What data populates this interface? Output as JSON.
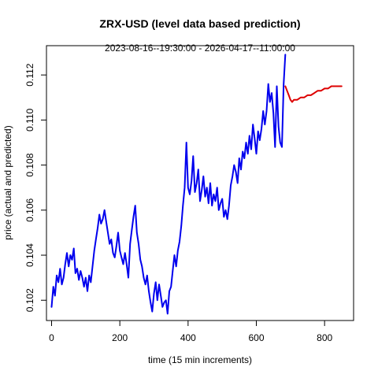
{
  "chart_data": {
    "type": "line",
    "title": "ZRX-USD (level data based prediction)",
    "subtitle": "2023-08-16--19:30:00  -  2026-04-17--11:00:00",
    "xlabel": "time (15 min increments)",
    "ylabel": "price (actual and predicted)",
    "xlim": [
      -15,
      885
    ],
    "ylim": [
      0.1011,
      0.1133
    ],
    "xticks": [
      0,
      200,
      400,
      600,
      800
    ],
    "yticks": [
      0.102,
      0.104,
      0.106,
      0.108,
      0.11,
      0.112
    ],
    "ytick_labels": [
      "0.102",
      "0.104",
      "0.106",
      "0.108",
      "0.110",
      "0.112"
    ],
    "grid": false,
    "legend": "none",
    "series": [
      {
        "color": "#0000ee",
        "x": [
          0,
          5,
          10,
          15,
          20,
          25,
          30,
          35,
          40,
          45,
          50,
          55,
          60,
          65,
          70,
          75,
          80,
          85,
          90,
          95,
          100,
          105,
          110,
          115,
          120,
          125,
          130,
          135,
          140,
          145,
          150,
          155,
          160,
          165,
          170,
          175,
          180,
          185,
          190,
          195,
          200,
          205,
          210,
          215,
          220,
          225,
          230,
          235,
          240,
          245,
          250,
          255,
          260,
          265,
          270,
          275,
          280,
          285,
          290,
          295,
          300,
          305,
          310,
          315,
          320,
          325,
          330,
          335,
          340,
          345,
          350,
          355,
          360,
          365,
          370,
          375,
          380,
          385,
          390,
          395,
          400,
          405,
          410,
          415,
          420,
          425,
          430,
          435,
          440,
          445,
          450,
          455,
          460,
          465,
          470,
          475,
          480,
          485,
          490,
          495,
          500,
          505,
          510,
          515,
          520,
          525,
          530,
          535,
          540,
          545,
          550,
          555,
          560,
          565,
          570,
          575,
          580,
          585,
          590,
          595,
          600,
          605,
          610,
          615,
          620,
          625,
          630,
          635,
          640,
          645,
          650,
          655,
          660,
          665,
          670,
          675,
          680,
          685
        ],
        "y": [
          0.1017,
          0.1026,
          0.1022,
          0.1031,
          0.1028,
          0.1034,
          0.1027,
          0.103,
          0.1036,
          0.1041,
          0.1035,
          0.104,
          0.1038,
          0.1043,
          0.1032,
          0.1034,
          0.1029,
          0.1033,
          0.103,
          0.1026,
          0.103,
          0.1024,
          0.1031,
          0.1028,
          0.1035,
          0.1042,
          0.1047,
          0.1052,
          0.1058,
          0.1054,
          0.1056,
          0.106,
          0.1055,
          0.105,
          0.1045,
          0.1047,
          0.1041,
          0.1039,
          0.1044,
          0.105,
          0.1042,
          0.1039,
          0.1036,
          0.1041,
          0.1036,
          0.103,
          0.1045,
          0.1051,
          0.1057,
          0.1062,
          0.105,
          0.1045,
          0.1038,
          0.1035,
          0.103,
          0.1027,
          0.1031,
          0.1024,
          0.1019,
          0.1015,
          0.1023,
          0.1028,
          0.102,
          0.1027,
          0.1022,
          0.1017,
          0.1019,
          0.102,
          0.1014,
          0.1024,
          0.1026,
          0.1033,
          0.104,
          0.1035,
          0.1042,
          0.1046,
          0.1053,
          0.1062,
          0.107,
          0.109,
          0.107,
          0.1067,
          0.1073,
          0.1084,
          0.1068,
          0.1072,
          0.1078,
          0.1064,
          0.1069,
          0.1075,
          0.1066,
          0.107,
          0.1063,
          0.1072,
          0.1062,
          0.1067,
          0.1064,
          0.107,
          0.106,
          0.1063,
          0.1065,
          0.1057,
          0.106,
          0.1056,
          0.1062,
          0.1071,
          0.1075,
          0.108,
          0.1077,
          0.1072,
          0.1083,
          0.1078,
          0.1086,
          0.1083,
          0.109,
          0.1085,
          0.1093,
          0.1087,
          0.1098,
          0.1092,
          0.1085,
          0.1095,
          0.1091,
          0.1096,
          0.1104,
          0.1098,
          0.1104,
          0.1116,
          0.1108,
          0.1112,
          0.1103,
          0.1088,
          0.1115,
          0.1097,
          0.109,
          0.1088,
          0.1116,
          0.1129
        ]
      },
      {
        "color": "#dd0000",
        "x": [
          685,
          690,
          695,
          700,
          705,
          710,
          715,
          720,
          730,
          740,
          750,
          760,
          770,
          780,
          790,
          800,
          810,
          820,
          830,
          840,
          850
        ],
        "y": [
          0.1115,
          0.1113,
          0.1111,
          0.1109,
          0.1108,
          0.1109,
          0.1109,
          0.1109,
          0.111,
          0.111,
          0.1111,
          0.1111,
          0.1112,
          0.1113,
          0.1113,
          0.1114,
          0.1114,
          0.1115,
          0.1115,
          0.1115,
          0.1115
        ]
      }
    ]
  }
}
